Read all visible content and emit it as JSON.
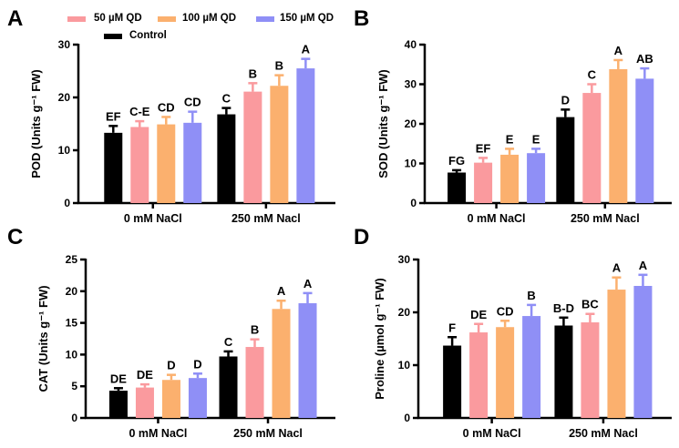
{
  "legend": {
    "items": [
      {
        "name": "50 µM QD",
        "color": "#fa9a9e"
      },
      {
        "name": "100 µM QD",
        "color": "#fbb06e"
      },
      {
        "name": "150 µM QD",
        "color": "#8f8ff6"
      },
      {
        "name": "Control",
        "color": "#000000"
      }
    ]
  },
  "chart_data": [
    {
      "panel": "A",
      "type": "bar",
      "title": "",
      "xlabel": "",
      "ylabel": "POD (Units g⁻¹ FW)",
      "ylim": [
        0,
        30
      ],
      "yticks": [
        0,
        10,
        20,
        30
      ],
      "categories": [
        "0 mM NaCl",
        "250 mM Nacl"
      ],
      "series": [
        {
          "name": "Control",
          "color": "#000000",
          "values": [
            13.3,
            16.8
          ],
          "errors": [
            1.3,
            1.2
          ],
          "letters": [
            "EF",
            "C"
          ]
        },
        {
          "name": "50 µM QD",
          "color": "#fa9a9e",
          "values": [
            14.4,
            21.1
          ],
          "errors": [
            1.1,
            1.6
          ],
          "letters": [
            "C-E",
            "B"
          ]
        },
        {
          "name": "100 µM QD",
          "color": "#fbb06e",
          "values": [
            14.9,
            22.2
          ],
          "errors": [
            1.4,
            2.0
          ],
          "letters": [
            "CD",
            "B"
          ]
        },
        {
          "name": "150 µM QD",
          "color": "#8f8ff6",
          "values": [
            15.2,
            25.5
          ],
          "errors": [
            2.1,
            1.8
          ],
          "letters": [
            "CD",
            "A"
          ]
        }
      ]
    },
    {
      "panel": "B",
      "type": "bar",
      "title": "",
      "xlabel": "",
      "ylabel": "SOD (Units g⁻¹ FW)",
      "ylim": [
        0,
        40
      ],
      "yticks": [
        0,
        10,
        20,
        30,
        40
      ],
      "categories": [
        "0 mM NaCl",
        "250 mM Nacl"
      ],
      "series": [
        {
          "name": "Control",
          "color": "#000000",
          "values": [
            7.7,
            21.7
          ],
          "errors": [
            0.6,
            1.9
          ],
          "letters": [
            "FG",
            "D"
          ]
        },
        {
          "name": "50 µM QD",
          "color": "#fa9a9e",
          "values": [
            10.2,
            27.8
          ],
          "errors": [
            1.2,
            2.2
          ],
          "letters": [
            "EF",
            "C"
          ]
        },
        {
          "name": "100 µM QD",
          "color": "#fbb06e",
          "values": [
            12.2,
            33.8
          ],
          "errors": [
            1.5,
            2.3
          ],
          "letters": [
            "E",
            "A"
          ]
        },
        {
          "name": "150 µM QD",
          "color": "#8f8ff6",
          "values": [
            12.6,
            31.4
          ],
          "errors": [
            1.1,
            2.6
          ],
          "letters": [
            "E",
            "AB"
          ]
        }
      ]
    },
    {
      "panel": "C",
      "type": "bar",
      "title": "",
      "xlabel": "",
      "ylabel": "CAT (Units g⁻¹ FW)",
      "ylim": [
        0,
        25
      ],
      "yticks": [
        0,
        5,
        10,
        15,
        20,
        25
      ],
      "categories": [
        "0 mM NaCl",
        "250 mM Nacl"
      ],
      "series": [
        {
          "name": "Control",
          "color": "#000000",
          "values": [
            4.3,
            9.7
          ],
          "errors": [
            0.4,
            0.8
          ],
          "letters": [
            "DE",
            "C"
          ]
        },
        {
          "name": "50 µM QD",
          "color": "#fa9a9e",
          "values": [
            4.8,
            11.2
          ],
          "errors": [
            0.5,
            1.2
          ],
          "letters": [
            "DE",
            "B"
          ]
        },
        {
          "name": "100 µM QD",
          "color": "#fbb06e",
          "values": [
            6.0,
            17.2
          ],
          "errors": [
            0.8,
            1.3
          ],
          "letters": [
            "D",
            "A"
          ]
        },
        {
          "name": "150 µM QD",
          "color": "#8f8ff6",
          "values": [
            6.3,
            18.1
          ],
          "errors": [
            0.7,
            1.6
          ],
          "letters": [
            "D",
            "A"
          ]
        }
      ]
    },
    {
      "panel": "D",
      "type": "bar",
      "title": "",
      "xlabel": "",
      "ylabel": "Proline (µmol g⁻¹ FW)",
      "ylim": [
        0,
        30
      ],
      "yticks": [
        0,
        10,
        20,
        30
      ],
      "categories": [
        "0 mM NaCl",
        "250 mM Nacl"
      ],
      "series": [
        {
          "name": "Control",
          "color": "#000000",
          "values": [
            13.7,
            17.5
          ],
          "errors": [
            1.6,
            1.5
          ],
          "letters": [
            "F",
            "B-D"
          ]
        },
        {
          "name": "50 µM QD",
          "color": "#fa9a9e",
          "values": [
            16.2,
            18.1
          ],
          "errors": [
            1.6,
            1.6
          ],
          "letters": [
            "DE",
            "BC"
          ]
        },
        {
          "name": "100 µM QD",
          "color": "#fbb06e",
          "values": [
            17.2,
            24.3
          ],
          "errors": [
            1.2,
            2.3
          ],
          "letters": [
            "CD",
            "A"
          ]
        },
        {
          "name": "150 µM QD",
          "color": "#8f8ff6",
          "values": [
            19.3,
            25.0
          ],
          "errors": [
            2.1,
            2.1
          ],
          "letters": [
            "B",
            "A"
          ]
        }
      ]
    }
  ]
}
